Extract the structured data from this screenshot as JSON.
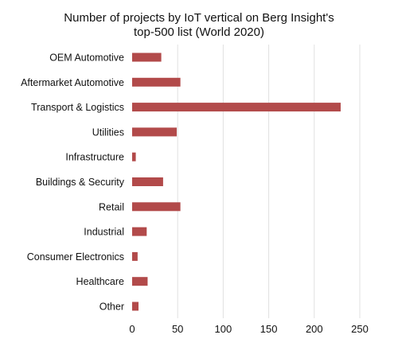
{
  "chart_data": {
    "type": "bar",
    "orientation": "horizontal",
    "title_lines": [
      "Number of projects by IoT vertical on Berg Insight's",
      "top-500 list (World 2020)"
    ],
    "categories": [
      "OEM Automotive",
      "Aftermarket Automotive",
      "Transport & Logistics",
      "Utilities",
      "Infrastructure",
      "Buildings & Security",
      "Retail",
      "Industrial",
      "Consumer Electronics",
      "Healthcare",
      "Other"
    ],
    "values": [
      32,
      53,
      229,
      49,
      4,
      34,
      53,
      16,
      6,
      17,
      7
    ],
    "xlim": [
      0,
      250
    ],
    "xticks": [
      0,
      50,
      100,
      150,
      200,
      250
    ],
    "grid": true,
    "legend": "none",
    "bar_color": "#b24a4a"
  }
}
